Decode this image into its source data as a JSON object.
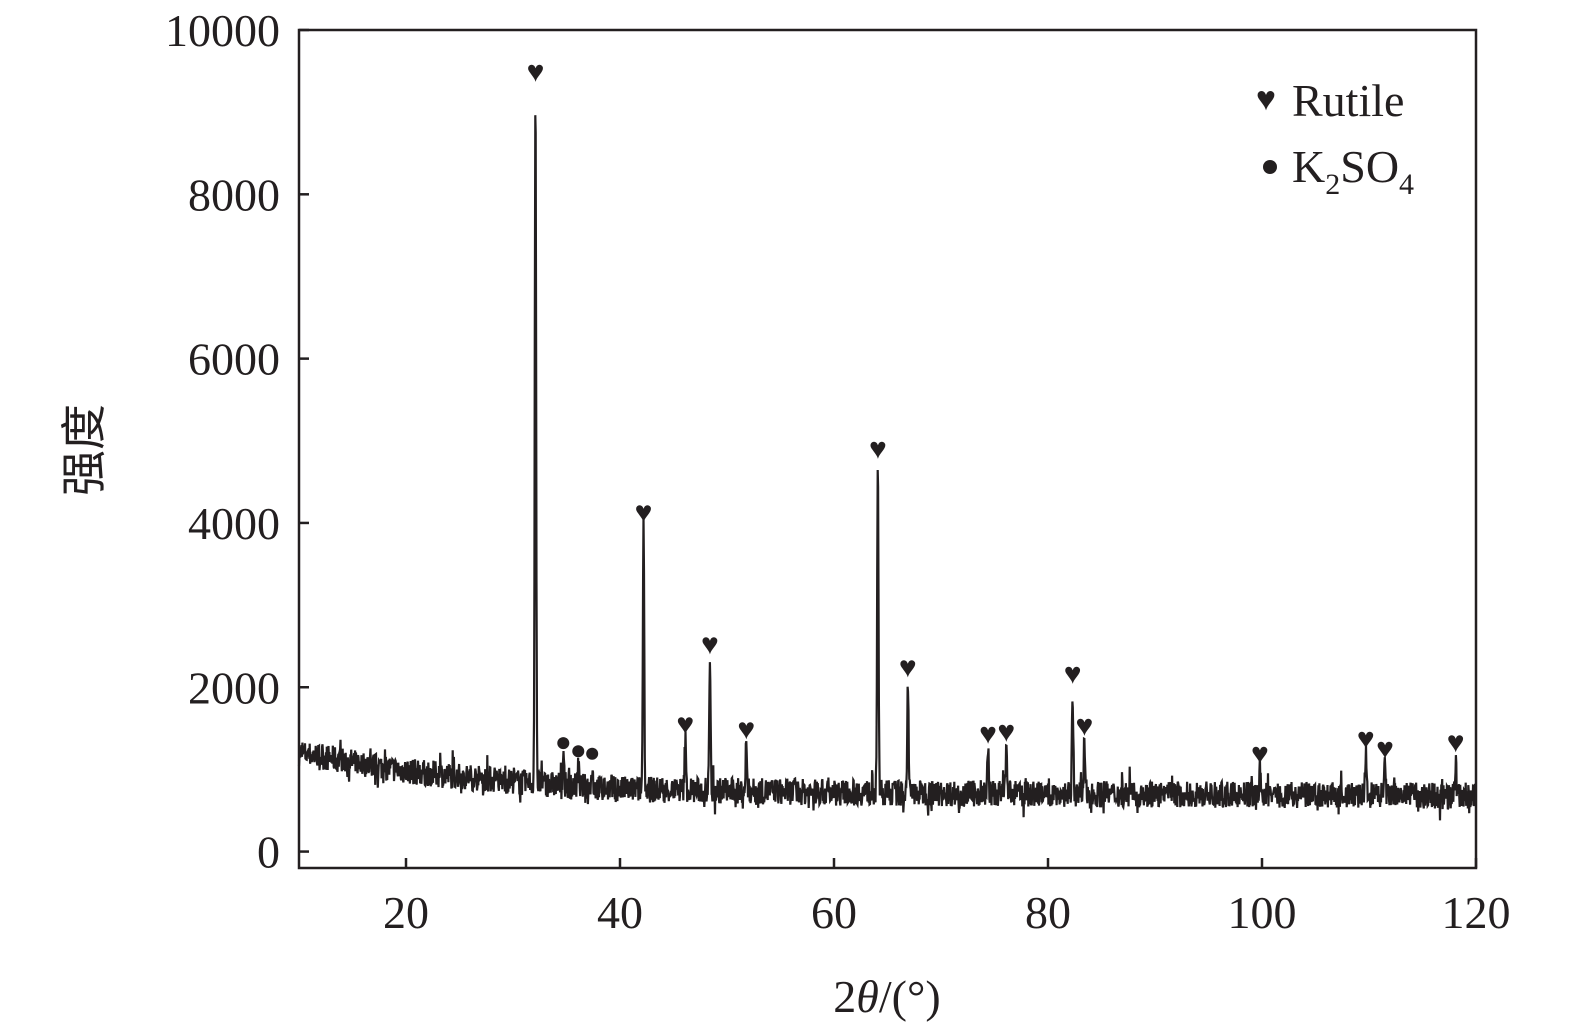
{
  "chart_data": {
    "type": "line",
    "title": "",
    "xlabel": "2θ/(°)",
    "ylabel": "强度",
    "xlim": [
      10,
      120
    ],
    "ylim": [
      -200,
      10000
    ],
    "xticks": [
      20,
      40,
      60,
      80,
      100,
      120
    ],
    "yticks": [
      0,
      2000,
      4000,
      6000,
      8000,
      10000
    ],
    "grid": false,
    "legend_position": "top-right",
    "line_color": "#231f20",
    "legend": [
      {
        "marker": "heart",
        "label": "Rutile"
      },
      {
        "marker": "dot",
        "label": "K2SO4",
        "label_parts": [
          "K",
          "2",
          "SO",
          "4"
        ]
      }
    ],
    "baseline": [
      [
        10,
        1200
      ],
      [
        20,
        980
      ],
      [
        30,
        850
      ],
      [
        40,
        760
      ],
      [
        60,
        720
      ],
      [
        80,
        700
      ],
      [
        120,
        680
      ]
    ],
    "peaks": [
      {
        "x": 32.1,
        "y": 9300,
        "phase": "Rutile"
      },
      {
        "x": 34.7,
        "y": 1150,
        "phase": "K2SO4"
      },
      {
        "x": 36.1,
        "y": 1050,
        "phase": "K2SO4"
      },
      {
        "x": 37.4,
        "y": 1020,
        "phase": "K2SO4"
      },
      {
        "x": 42.2,
        "y": 3940,
        "phase": "Rutile"
      },
      {
        "x": 46.1,
        "y": 1360,
        "phase": "Rutile"
      },
      {
        "x": 48.4,
        "y": 2330,
        "phase": "Rutile"
      },
      {
        "x": 51.8,
        "y": 1300,
        "phase": "Rutile"
      },
      {
        "x": 64.1,
        "y": 4710,
        "phase": "Rutile"
      },
      {
        "x": 66.9,
        "y": 2050,
        "phase": "Rutile"
      },
      {
        "x": 74.4,
        "y": 1240,
        "phase": "Rutile"
      },
      {
        "x": 76.1,
        "y": 1265,
        "phase": "Rutile"
      },
      {
        "x": 82.3,
        "y": 1970,
        "phase": "Rutile"
      },
      {
        "x": 83.4,
        "y": 1340,
        "phase": "Rutile"
      },
      {
        "x": 99.8,
        "y": 1000,
        "phase": "Rutile"
      },
      {
        "x": 109.7,
        "y": 1180,
        "phase": "Rutile"
      },
      {
        "x": 111.5,
        "y": 1060,
        "phase": "Rutile"
      },
      {
        "x": 118.1,
        "y": 1140,
        "phase": "Rutile"
      }
    ]
  }
}
